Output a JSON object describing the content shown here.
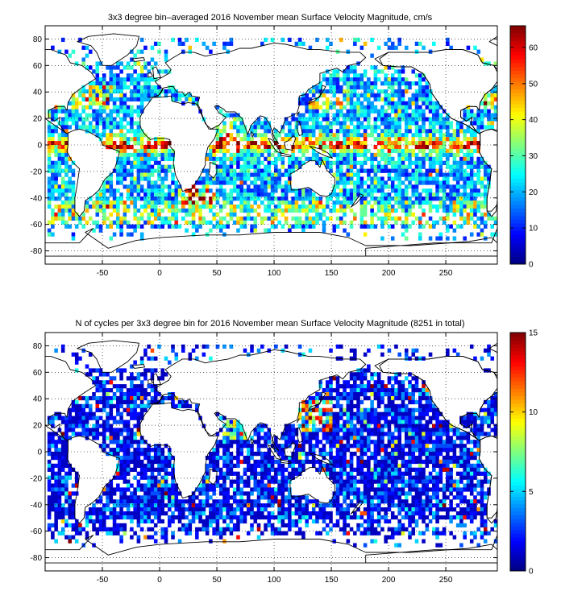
{
  "charts": [
    {
      "title": "3x3 degree bin–averaged 2016 November mean Surface Velocity Magnitude, cm/s",
      "xticks": [
        -50,
        0,
        50,
        100,
        150,
        200,
        250
      ],
      "yticks": [
        80,
        60,
        40,
        20,
        0,
        -20,
        -40,
        -60,
        -80
      ],
      "colorbar_ticks": [
        0,
        10,
        20,
        30,
        40,
        50,
        60
      ]
    },
    {
      "title": "N of cycles per 3x3 degree bin for 2016 November mean Surface Velocity Magnitude (8251 in total)",
      "xticks": [
        -50,
        0,
        50,
        100,
        150,
        200,
        250
      ],
      "yticks": [
        80,
        60,
        40,
        20,
        0,
        -20,
        -40,
        -60,
        -80
      ],
      "colorbar_ticks": [
        0,
        5,
        10,
        15
      ]
    }
  ],
  "chart_data": [
    {
      "type": "heatmap",
      "title": "3x3 degree bin–averaged 2016 November mean Surface Velocity Magnitude, cm/s",
      "xlim": [
        -100,
        295
      ],
      "ylim": [
        -90,
        90
      ],
      "bin_size_deg": 3,
      "colorbar": {
        "min": 0,
        "max": 66,
        "ticks": [
          0,
          10,
          20,
          30,
          40,
          50,
          60
        ],
        "colormap": "jet"
      },
      "grid": true,
      "summary": "Bins are mostly 10-30 cm/s; strong currents (>50 cm/s) along the equator, Gulf Stream, Kuroshio, Agulhas and the Antarctic Circumpolar Current; blank over land and unsampled ocean."
    },
    {
      "type": "heatmap",
      "title": "N of cycles per 3x3 degree bin for 2016 November mean Surface Velocity Magnitude (8251 in total)",
      "xlim": [
        -100,
        295
      ],
      "ylim": [
        -90,
        90
      ],
      "bin_size_deg": 3,
      "total_cycles": 8251,
      "colorbar": {
        "min": 0,
        "max": 15,
        "ticks": [
          0,
          5,
          10,
          15
        ],
        "colormap": "jet"
      },
      "grid": true,
      "summary": "Most bins hold 1-3 cycles; higher counts (8-15) in the northwest Pacific, Arabian Sea, Mediterranean and a few equatorial bins."
    }
  ]
}
